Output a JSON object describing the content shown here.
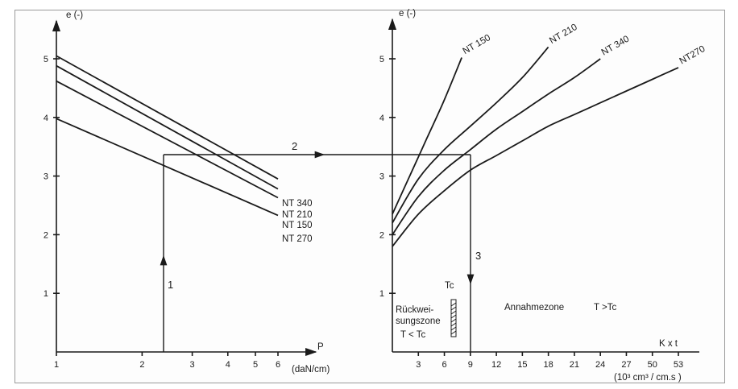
{
  "chart_data": [
    {
      "type": "line",
      "ylabel": "e (-)",
      "xlabel": "P",
      "xunit": "(daN/cm)",
      "xscale": "log",
      "x_ticks": [
        "1",
        "2",
        "3",
        "4",
        "5",
        "6"
      ],
      "y_ticks": [
        "1",
        "2",
        "3",
        "4",
        "5"
      ],
      "xlim": [
        1,
        7
      ],
      "ylim": [
        0,
        6
      ],
      "series": [
        {
          "name": "NT 340",
          "x": [
            1,
            6
          ],
          "y": [
            5.05,
            2.95
          ]
        },
        {
          "name": "NT 210",
          "x": [
            1,
            6
          ],
          "y": [
            4.88,
            2.78
          ]
        },
        {
          "name": "NT 150",
          "x": [
            1,
            6
          ],
          "y": [
            4.62,
            2.63
          ]
        },
        {
          "name": "NT 270",
          "x": [
            1,
            6
          ],
          "y": [
            3.98,
            2.33
          ]
        }
      ],
      "annotations": [
        {
          "text": "1",
          "note": "vertical arrow up",
          "x": 2.4,
          "y_from": 0,
          "y_to": 4.0
        },
        {
          "text": "2",
          "note": "horizontal arrow to right chart",
          "y": 4.0
        }
      ]
    },
    {
      "type": "line",
      "ylabel": "e (-)",
      "xlabel": "K x t",
      "xunit": "(10³ cm³ / cm.s )",
      "x_ticks": [
        "3",
        "6",
        "9",
        "12",
        "15",
        "18",
        "21",
        "24",
        "27",
        "50",
        "53"
      ],
      "y_ticks": [
        "1",
        "2",
        "3",
        "4",
        "5"
      ],
      "xlim": [
        0,
        33
      ],
      "ylim": [
        0,
        6
      ],
      "series": [
        {
          "name": "NT 150",
          "x": [
            0,
            2,
            4,
            6,
            8
          ],
          "y": [
            2.35,
            3.0,
            3.65,
            4.3,
            5.02
          ]
        },
        {
          "name": "NT 210",
          "x": [
            0,
            3,
            6,
            9,
            12,
            15,
            18
          ],
          "y": [
            2.2,
            2.95,
            3.45,
            3.85,
            4.25,
            4.68,
            5.2
          ]
        },
        {
          "name": "NT 340",
          "x": [
            0,
            3,
            6,
            9,
            12,
            15,
            18,
            21,
            24
          ],
          "y": [
            2.0,
            2.65,
            3.1,
            3.45,
            3.8,
            4.1,
            4.4,
            4.68,
            5.0
          ]
        },
        {
          "name": "NT270",
          "x": [
            0,
            3,
            6,
            9,
            12,
            15,
            18,
            21,
            24,
            27,
            30,
            33
          ],
          "y": [
            1.8,
            2.35,
            2.75,
            3.1,
            3.35,
            3.6,
            3.85,
            4.05,
            4.25,
            4.45,
            4.65,
            4.85
          ]
        }
      ],
      "annotations": [
        {
          "text": "3",
          "note": "vertical arrow down",
          "x": 9.6,
          "y_from": 4.0,
          "y_to": 0
        },
        {
          "text": "Tc",
          "x": 8
        },
        {
          "text": "Rückwei-"
        },
        {
          "text": "sungszone"
        },
        {
          "text": "T < Tc"
        },
        {
          "text": "Annahmezone"
        },
        {
          "text": "T >Tc"
        }
      ]
    }
  ]
}
